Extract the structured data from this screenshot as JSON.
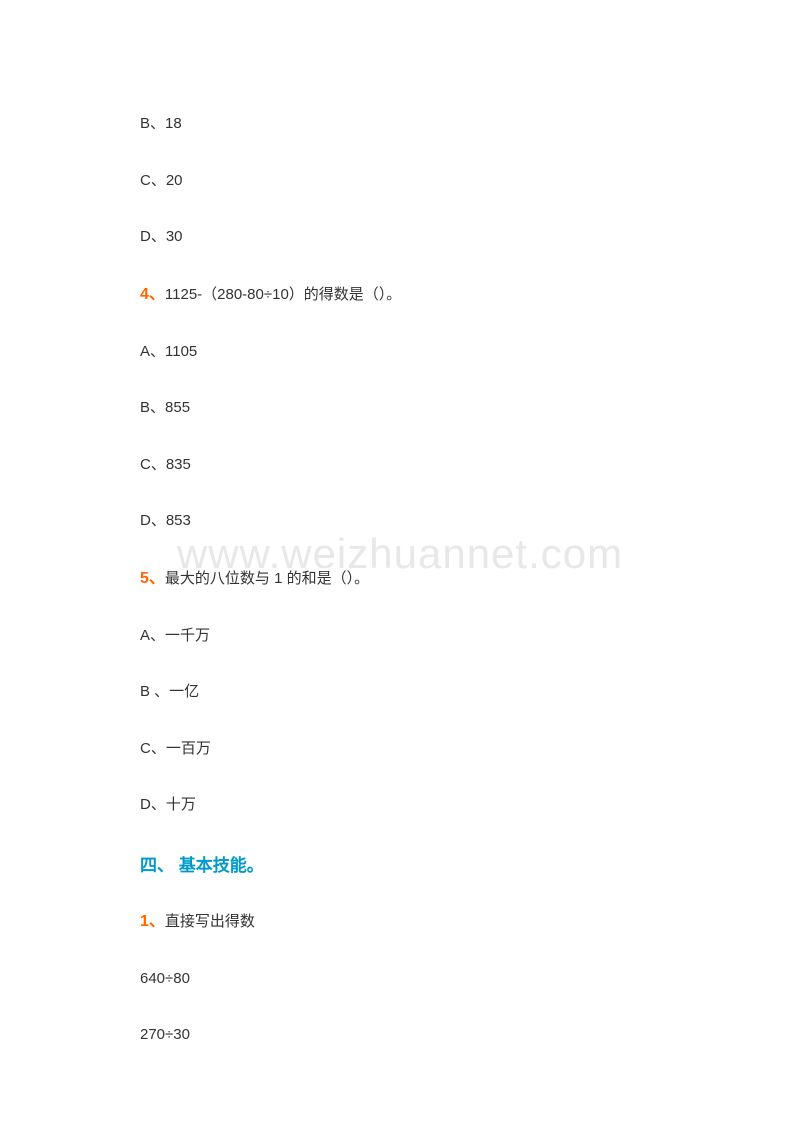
{
  "watermark": "www.weizhuannet.com",
  "options_q3": {
    "b": "B、18",
    "c": "C、20",
    "d": "D、30"
  },
  "q4": {
    "num": "4、",
    "text": "1125-（280-80÷10）的得数是（）。",
    "a": "A、1105",
    "b": "B、855",
    "c": "C、835",
    "d": "D、853"
  },
  "q5": {
    "num": "5、",
    "text": "最大的八位数与 1 的和是（）。",
    "a": "A、一千万",
    "b": "B 、一亿",
    "c": "C、一百万",
    "d": "D、十万"
  },
  "section4": "四、  基本技能。",
  "s4q1": {
    "num": "1、",
    "text": "直接写出得数",
    "item1": "640÷80",
    "item2": "270÷30"
  }
}
